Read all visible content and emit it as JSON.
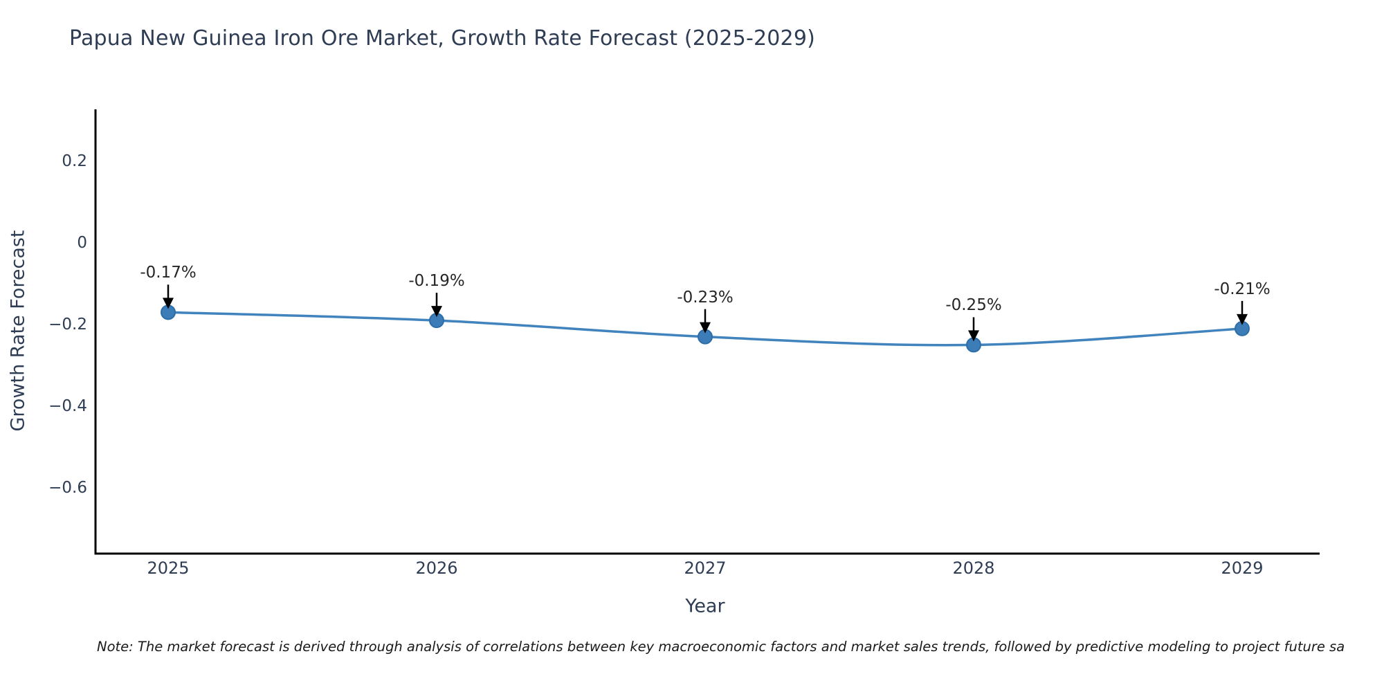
{
  "page": {
    "background": "#ffffff"
  },
  "chart_data": {
    "type": "line",
    "title": "Papua New Guinea Iron Ore Market, Growth Rate Forecast (2025-2029)",
    "xlabel": "Year",
    "ylabel": "Growth Rate Forecast",
    "categories": [
      "2025",
      "2026",
      "2027",
      "2028",
      "2029"
    ],
    "series": [
      {
        "name": "Growth Rate Forecast",
        "values": [
          -0.17,
          -0.19,
          -0.23,
          -0.25,
          -0.21
        ]
      }
    ],
    "point_labels": [
      "-0.17%",
      "-0.19%",
      "-0.23%",
      "-0.25%",
      "-0.21%"
    ],
    "yticks": [
      {
        "value": 0.2,
        "label": "0.2"
      },
      {
        "value": 0,
        "label": "0"
      },
      {
        "value": -0.2,
        "label": "−0.2"
      },
      {
        "value": -0.4,
        "label": "−0.4"
      },
      {
        "value": -0.6,
        "label": "−0.6"
      }
    ],
    "ylim": [
      -0.762,
      0.328
    ],
    "grid": false,
    "legend": "none",
    "line_shape": "spline",
    "colors": {
      "line": "#4183bd",
      "marker_fill": "#3c7db8",
      "marker_edge": "#2d6da8",
      "arrow": "#000000",
      "axis": "#000000",
      "text": "#2e3d54",
      "annotation_text": "#262626"
    }
  },
  "note": {
    "text": "Note: The market forecast is derived through analysis of correlations between key macroeconomic factors and market sales trends, followed by predictive modeling to project future sa"
  }
}
